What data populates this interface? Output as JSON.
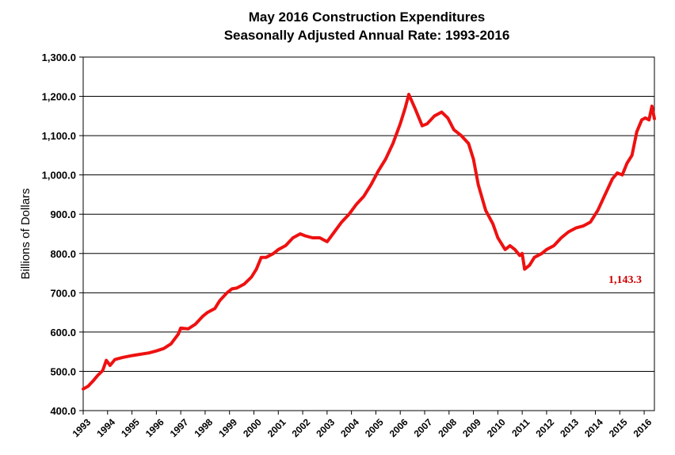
{
  "chart_data": {
    "type": "line",
    "title_line1": "May 2016 Construction Expenditures",
    "title_line2": "Seasonally Adjusted Annual Rate: 1993-2016",
    "ylabel": "Billions of Dollars",
    "xlabel": "",
    "ylim": [
      400,
      1300
    ],
    "xlim": [
      1993.0,
      2016.42
    ],
    "grid": true,
    "legend": "none",
    "line_color": "#ee1111",
    "y_ticks": [
      "400.0",
      "500.0",
      "600.0",
      "700.0",
      "800.0",
      "900.0",
      "1,000.0",
      "1,100.0",
      "1,200.0",
      "1,300.0"
    ],
    "x_ticks": [
      "1993",
      "1994",
      "1995",
      "1996",
      "1997",
      "1998",
      "1999",
      "2000",
      "2001",
      "2002",
      "2003",
      "2004",
      "2005",
      "2006",
      "2007",
      "2008",
      "2009",
      "2010",
      "2011",
      "2012",
      "2013",
      "2014",
      "2015",
      "2016"
    ],
    "annotation": {
      "text": "1,143.3",
      "color": "#cc0000"
    },
    "series": [
      {
        "x": [
          1993.0,
          1993.2,
          1993.4,
          1993.6,
          1993.8,
          1993.95,
          1994.1,
          1994.3,
          1994.6,
          1995.0,
          1995.3,
          1995.7,
          1996.0,
          1996.3,
          1996.6,
          1996.9,
          1997.0,
          1997.3,
          1997.6,
          1997.9,
          1998.1,
          1998.4,
          1998.6,
          1998.9,
          1999.1,
          1999.3,
          1999.6,
          1999.9,
          2000.1,
          2000.3,
          2000.5,
          2000.8,
          2001.0,
          2001.3,
          2001.6,
          2001.9,
          2002.1,
          2002.4,
          2002.7,
          2003.0,
          2003.3,
          2003.6,
          2003.9,
          2004.2,
          2004.5,
          2004.8,
          2005.1,
          2005.4,
          2005.7,
          2006.0,
          2006.2,
          2006.35,
          2006.6,
          2006.9,
          2007.1,
          2007.4,
          2007.7,
          2007.95,
          2008.2,
          2008.5,
          2008.8,
          2009.0,
          2009.2,
          2009.5,
          2009.8,
          2010.0,
          2010.3,
          2010.5,
          2010.7,
          2010.9,
          2011.0,
          2011.1,
          2011.3,
          2011.5,
          2011.8,
          2012.0,
          2012.3,
          2012.6,
          2012.9,
          2013.2,
          2013.5,
          2013.8,
          2014.1,
          2014.4,
          2014.7,
          2014.9,
          2015.1,
          2015.3,
          2015.5,
          2015.7,
          2015.9,
          2016.05,
          2016.2,
          2016.32,
          2016.42
        ],
        "values": [
          455,
          462,
          475,
          490,
          502,
          528,
          515,
          530,
          535,
          540,
          543,
          547,
          552,
          558,
          570,
          595,
          610,
          608,
          620,
          640,
          650,
          660,
          680,
          700,
          710,
          712,
          722,
          740,
          760,
          790,
          790,
          800,
          810,
          820,
          840,
          850,
          845,
          840,
          840,
          830,
          855,
          880,
          900,
          925,
          945,
          975,
          1010,
          1040,
          1080,
          1130,
          1170,
          1205,
          1170,
          1125,
          1130,
          1150,
          1160,
          1145,
          1115,
          1100,
          1080,
          1040,
          975,
          910,
          875,
          840,
          810,
          820,
          810,
          795,
          800,
          760,
          770,
          790,
          800,
          810,
          820,
          840,
          855,
          865,
          870,
          880,
          910,
          950,
          990,
          1005,
          1000,
          1030,
          1050,
          1110,
          1140,
          1145,
          1140,
          1175,
          1143.3
        ]
      }
    ]
  }
}
